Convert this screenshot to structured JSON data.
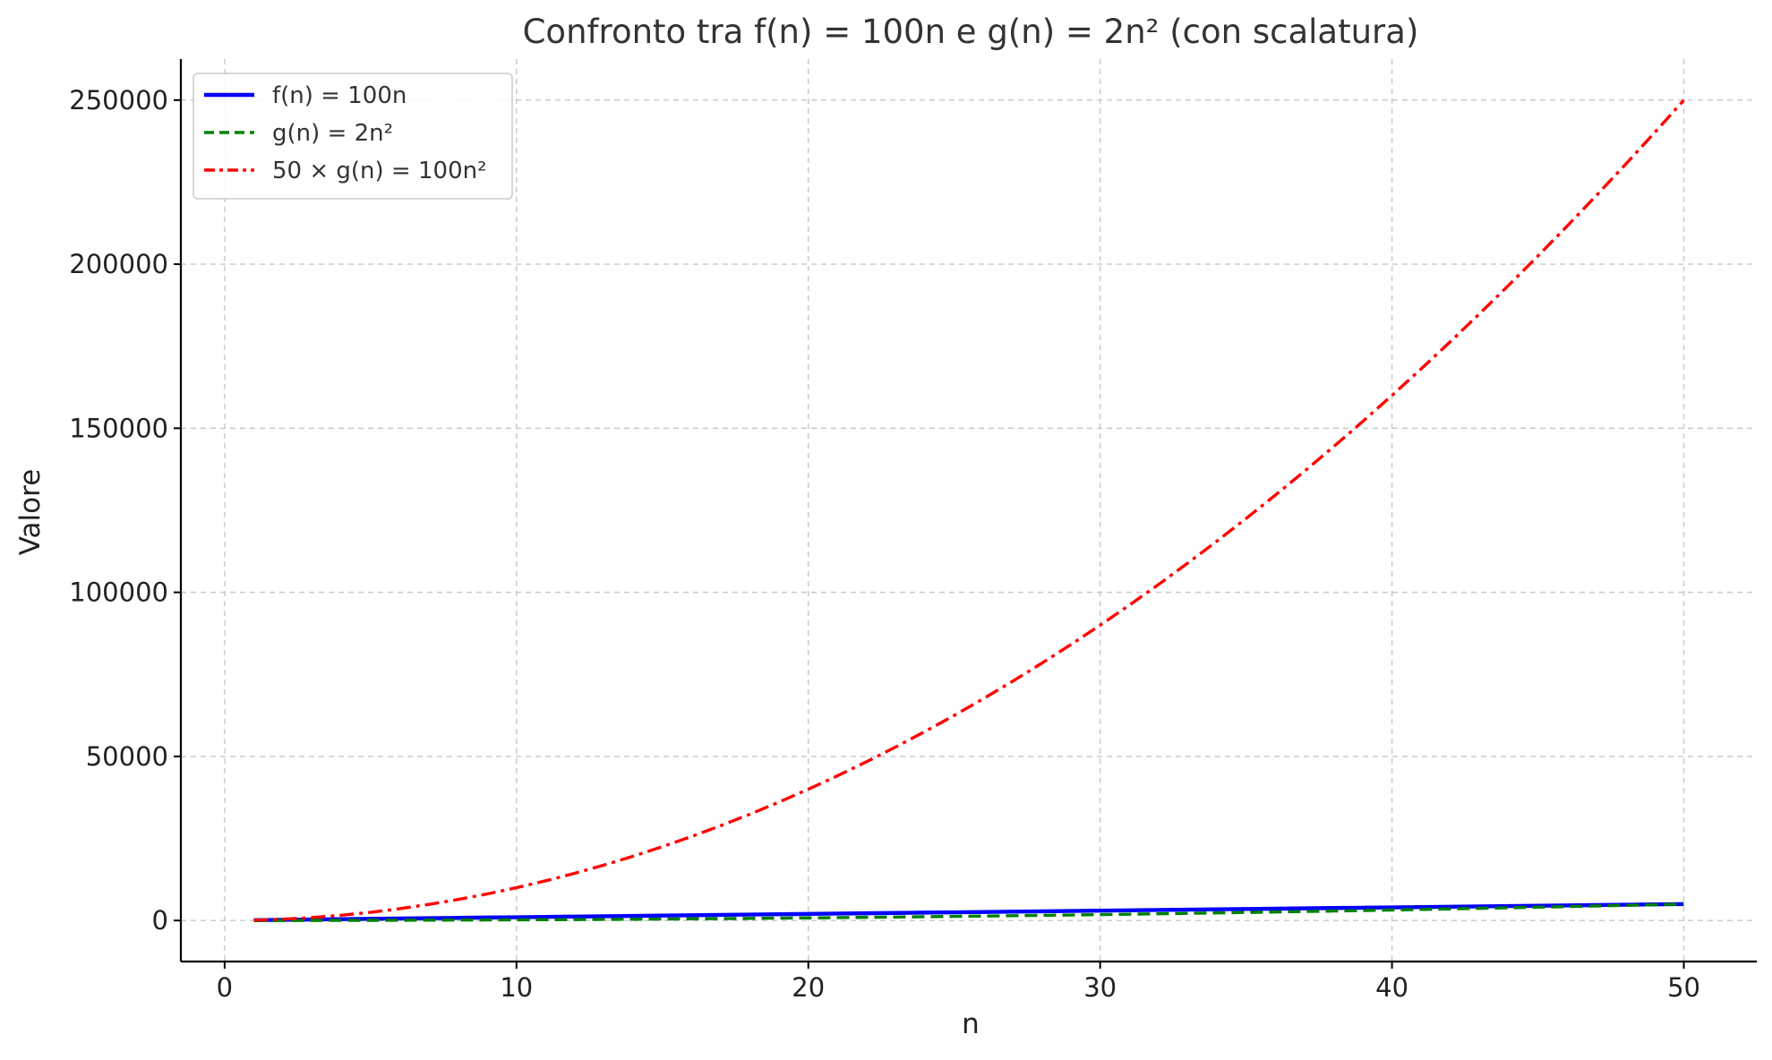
{
  "chart_data": {
    "type": "line",
    "title": "Confronto tra f(n) = 100n e g(n) = 2n² (con scalatura)",
    "xlabel": "n",
    "ylabel": "Valore",
    "xlim": [
      -1.5,
      52.5
    ],
    "ylim": [
      -12500,
      262500
    ],
    "x_ticks": [
      0,
      10,
      20,
      30,
      40,
      50
    ],
    "x_tick_labels": [
      "0",
      "10",
      "20",
      "30",
      "40",
      "50"
    ],
    "y_ticks": [
      0,
      50000,
      100000,
      150000,
      200000,
      250000
    ],
    "y_tick_labels": [
      "0",
      "50000",
      "100000",
      "150000",
      "200000",
      "250000"
    ],
    "grid": true,
    "legend_position": "top-left",
    "x": [
      1,
      2,
      3,
      4,
      5,
      6,
      7,
      8,
      9,
      10,
      11,
      12,
      13,
      14,
      15,
      16,
      17,
      18,
      19,
      20,
      21,
      22,
      23,
      24,
      25,
      26,
      27,
      28,
      29,
      30,
      31,
      32,
      33,
      34,
      35,
      36,
      37,
      38,
      39,
      40,
      41,
      42,
      43,
      44,
      45,
      46,
      47,
      48,
      49,
      50
    ],
    "series": [
      {
        "name": "f(n) = 100n",
        "color": "#0000ff",
        "style": "solid",
        "values": [
          100,
          200,
          300,
          400,
          500,
          600,
          700,
          800,
          900,
          1000,
          1100,
          1200,
          1300,
          1400,
          1500,
          1600,
          1700,
          1800,
          1900,
          2000,
          2100,
          2200,
          2300,
          2400,
          2500,
          2600,
          2700,
          2800,
          2900,
          3000,
          3100,
          3200,
          3300,
          3400,
          3500,
          3600,
          3700,
          3800,
          3900,
          4000,
          4100,
          4200,
          4300,
          4400,
          4500,
          4600,
          4700,
          4800,
          4900,
          5000
        ]
      },
      {
        "name": "g(n) = 2n²",
        "color": "#008000",
        "style": "dashed",
        "values": [
          2,
          8,
          18,
          32,
          50,
          72,
          98,
          128,
          162,
          200,
          242,
          288,
          338,
          392,
          450,
          512,
          578,
          648,
          722,
          800,
          882,
          968,
          1058,
          1152,
          1250,
          1352,
          1458,
          1568,
          1682,
          1800,
          1922,
          2048,
          2178,
          2312,
          2450,
          2592,
          2738,
          2888,
          3042,
          3200,
          3362,
          3528,
          3698,
          3872,
          4050,
          4232,
          4418,
          4608,
          4802,
          5000
        ]
      },
      {
        "name": "50 × g(n) = 100n²",
        "color": "#ff0000",
        "style": "dashdot",
        "values": [
          100,
          400,
          900,
          1600,
          2500,
          3600,
          4900,
          6400,
          8100,
          10000,
          12100,
          14400,
          16900,
          19600,
          22500,
          25600,
          28900,
          32400,
          36100,
          40000,
          44100,
          48400,
          52900,
          57600,
          62500,
          67600,
          72900,
          78400,
          84100,
          90000,
          96100,
          102400,
          108900,
          115600,
          122500,
          129600,
          136900,
          144400,
          152100,
          160000,
          168100,
          176400,
          184900,
          193600,
          202500,
          211600,
          220900,
          230400,
          240100,
          250000
        ]
      }
    ]
  }
}
